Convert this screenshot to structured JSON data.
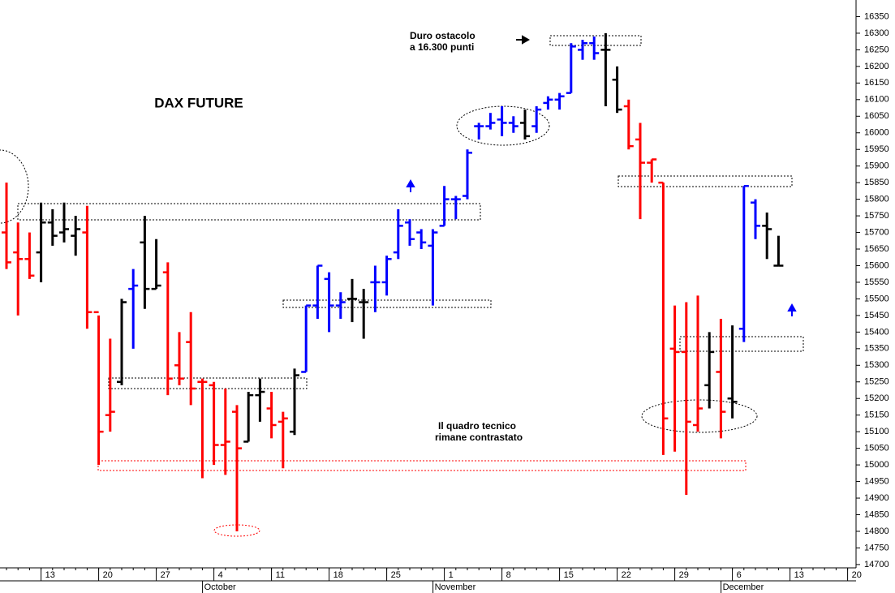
{
  "chart_data": {
    "type": "ohlc",
    "title": "DAX FUTURE",
    "annotations": [
      [
        "Duro ostacolo",
        "a 16.300 punti"
      ],
      [
        "Il quadro tecnico",
        "rimane contrastato"
      ]
    ],
    "categories": [
      null,
      null,
      null,
      "13",
      null,
      null,
      null,
      null,
      "20",
      null,
      null,
      null,
      null,
      "27",
      null,
      null,
      null,
      null,
      "4",
      null,
      null,
      null,
      null,
      "11",
      null,
      null,
      null,
      null,
      "18",
      null,
      null,
      null,
      null,
      "25",
      null,
      null,
      null,
      null,
      "1",
      null,
      null,
      null,
      null,
      "8",
      null,
      null,
      null,
      null,
      "15",
      null,
      null,
      null,
      null,
      "22",
      null,
      null,
      null,
      null,
      "29",
      null,
      null,
      null,
      null,
      "6",
      null,
      null,
      null,
      null,
      "13",
      null,
      null,
      null,
      null,
      "20"
    ],
    "month_labels": [
      null,
      null,
      null,
      null,
      null,
      null,
      null,
      null,
      null,
      null,
      null,
      null,
      null,
      null,
      null,
      null,
      null,
      null,
      "October",
      null,
      null,
      null,
      null,
      null,
      null,
      null,
      null,
      null,
      null,
      null,
      null,
      null,
      null,
      null,
      null,
      null,
      null,
      null,
      "November",
      null,
      null,
      null,
      null,
      null,
      null,
      null,
      null,
      null,
      null,
      null,
      null,
      null,
      null,
      null,
      null,
      null,
      null,
      null,
      null,
      null,
      null,
      null,
      null,
      "December",
      null,
      null,
      null,
      null,
      null,
      null,
      null,
      null,
      null,
      null
    ],
    "open": [
      15700,
      15640,
      15620,
      15640,
      15730,
      15700,
      15690,
      15700,
      15460,
      15150,
      15250,
      15530,
      15670,
      15530,
      15580,
      15300,
      15370,
      15250,
      15240,
      15060,
      15160,
      15070,
      15210,
      15170,
      15130,
      15100,
      15280,
      15480,
      15560,
      15480,
      15500,
      15490,
      15550,
      15550,
      15640,
      15730,
      15700,
      15660,
      15720,
      15800,
      15810,
      16020,
      16020,
      16040,
      16030,
      16030,
      16020,
      16090,
      16100,
      16120,
      16250,
      16270,
      16250,
      16160,
      16080,
      15980,
      15910,
      15850,
      15350,
      15340,
      15120,
      15240,
      15280,
      15200,
      15410,
      15790,
      15720,
      15600,
      null,
      null,
      null,
      null,
      null,
      null
    ],
    "high": [
      15850,
      15730,
      15700,
      15790,
      15770,
      15790,
      15750,
      15780,
      15450,
      15380,
      15500,
      15590,
      15750,
      15680,
      15610,
      15400,
      15460,
      15260,
      15250,
      15230,
      15180,
      15220,
      15260,
      15220,
      15160,
      15290,
      15480,
      15600,
      15580,
      15520,
      15560,
      15530,
      15600,
      15630,
      15770,
      15740,
      15710,
      15710,
      15840,
      15810,
      15950,
      16030,
      16060,
      16080,
      16050,
      16070,
      16080,
      16110,
      16120,
      16270,
      16280,
      16290,
      16300,
      16200,
      16100,
      16030,
      15920,
      15850,
      15480,
      15490,
      15510,
      15400,
      15440,
      15420,
      15840,
      15800,
      15760,
      15690,
      null,
      null,
      null,
      null,
      null,
      null
    ],
    "low": [
      15590,
      15450,
      15560,
      15550,
      15660,
      15670,
      15630,
      15410,
      15000,
      15100,
      15240,
      15350,
      15470,
      15530,
      15210,
      15240,
      15180,
      14960,
      15000,
      14970,
      14800,
      15070,
      15130,
      15080,
      14990,
      15090,
      15280,
      15440,
      15400,
      15440,
      15430,
      15380,
      15460,
      15510,
      15620,
      15660,
      15650,
      15480,
      15720,
      15740,
      15800,
      15980,
      16010,
      15990,
      16000,
      15980,
      16000,
      16070,
      16070,
      16120,
      16220,
      16220,
      16080,
      16060,
      15950,
      15740,
      15850,
      15030,
      15040,
      14910,
      15100,
      15170,
      15080,
      15140,
      15370,
      15680,
      15620,
      15600,
      null,
      null,
      null,
      null,
      null,
      null
    ],
    "close": [
      15610,
      15620,
      15570,
      15730,
      15690,
      15710,
      15710,
      15460,
      15100,
      15160,
      15490,
      15540,
      15530,
      15540,
      15260,
      15260,
      15230,
      15250,
      15060,
      15070,
      15050,
      15210,
      15220,
      15120,
      15140,
      15270,
      15480,
      15600,
      15480,
      15490,
      15500,
      15490,
      15550,
      15620,
      15720,
      15680,
      15670,
      15700,
      15800,
      15800,
      15940,
      16020,
      16030,
      16030,
      16020,
      15990,
      16070,
      16100,
      16110,
      16260,
      16270,
      16240,
      16250,
      16070,
      15960,
      15910,
      15920,
      15140,
      15340,
      15130,
      15170,
      15340,
      15160,
      15190,
      15840,
      15720,
      15710,
      15600,
      null,
      null,
      null,
      null,
      null,
      null
    ],
    "colors": [
      "#ff0000",
      "#ff0000",
      "#ff0000",
      "#000000",
      "#000000",
      "#000000",
      "#000000",
      "#ff0000",
      "#ff0000",
      "#ff0000",
      "#000000",
      "#0000ff",
      "#000000",
      "#000000",
      "#ff0000",
      "#ff0000",
      "#ff0000",
      "#ff0000",
      "#ff0000",
      "#ff0000",
      "#ff0000",
      "#000000",
      "#000000",
      "#ff0000",
      "#ff0000",
      "#000000",
      "#0000ff",
      "#0000ff",
      "#0000ff",
      "#0000ff",
      "#000000",
      "#000000",
      "#0000ff",
      "#0000ff",
      "#0000ff",
      "#0000ff",
      "#0000ff",
      "#0000ff",
      "#0000ff",
      "#0000ff",
      "#0000ff",
      "#0000ff",
      "#0000ff",
      "#0000ff",
      "#0000ff",
      "#000000",
      "#0000ff",
      "#0000ff",
      "#0000ff",
      "#0000ff",
      "#0000ff",
      "#0000ff",
      "#000000",
      "#000000",
      "#ff0000",
      "#ff0000",
      "#ff0000",
      "#ff0000",
      "#ff0000",
      "#ff0000",
      "#ff0000",
      "#000000",
      "#ff0000",
      "#000000",
      "#0000ff",
      "#0000ff",
      "#000000",
      "#000000",
      null,
      null,
      null,
      null,
      null,
      null
    ],
    "ylim": [
      14690,
      16400
    ],
    "yticks": [
      14700,
      14750,
      14800,
      14850,
      14900,
      14950,
      15000,
      15050,
      15100,
      15150,
      15200,
      15250,
      15300,
      15350,
      15400,
      15450,
      15500,
      15550,
      15600,
      15650,
      15700,
      15750,
      15800,
      15850,
      15900,
      15950,
      16000,
      16050,
      16100,
      16150,
      16200,
      16250,
      16300,
      16350
    ]
  }
}
